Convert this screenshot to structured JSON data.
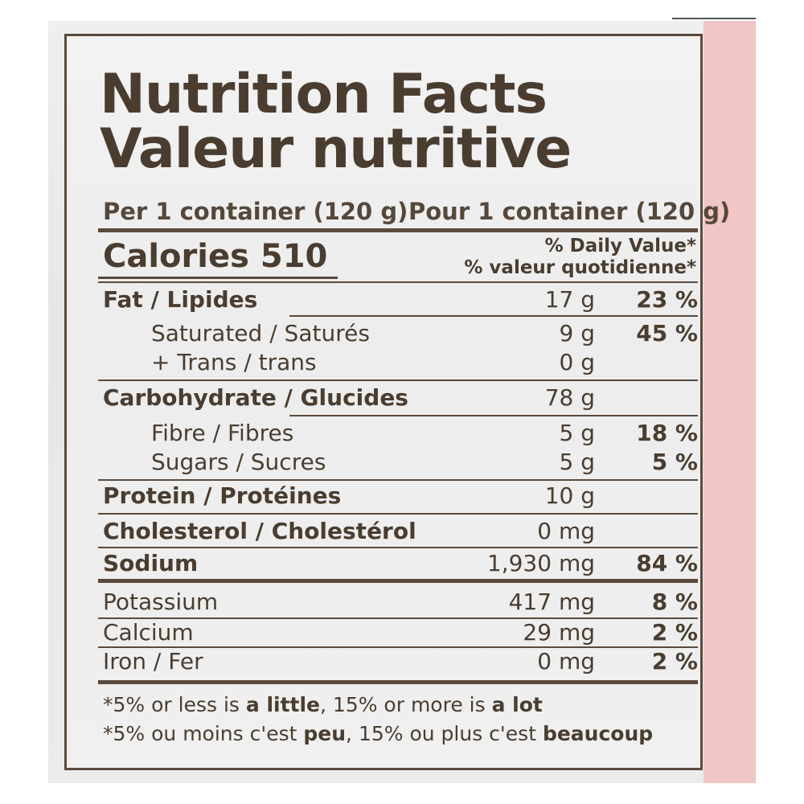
{
  "title_en": "Nutrition Facts",
  "title_fr": "Valeur nutritive",
  "serving_en": "Per 1 container (120 g)",
  "serving_fr": "Pour 1 container (120 g)",
  "calories_label": "Calories",
  "calories_value": "510",
  "dv_header_en": "% Daily Value*",
  "dv_header_fr": "% valeur quotidienne*",
  "rows": [
    {
      "label": "Fat / Lipides",
      "amount": "17 g",
      "dv": "23 %"
    },
    {
      "label": "Saturated / Saturés",
      "amount": "9 g",
      "dv": "45 %"
    },
    {
      "label": "+ Trans / trans",
      "amount": "0 g",
      "dv": ""
    },
    {
      "label": "Carbohydrate / Glucides",
      "amount": "78 g",
      "dv": ""
    },
    {
      "label": "Fibre / Fibres",
      "amount": "5 g",
      "dv": "18 %"
    },
    {
      "label": "Sugars / Sucres",
      "amount": "5 g",
      "dv": "5 %"
    },
    {
      "label": "Protein / Protéines",
      "amount": "10 g",
      "dv": ""
    },
    {
      "label": "Cholesterol / Cholestérol",
      "amount": "0 mg",
      "dv": ""
    },
    {
      "label": "Sodium",
      "amount": "1,930 mg",
      "dv": "84 %"
    },
    {
      "label": "Potassium",
      "amount": "417 mg",
      "dv": "8 %"
    },
    {
      "label": "Calcium",
      "amount": "29 mg",
      "dv": "2 %"
    },
    {
      "label": "Iron / Fer",
      "amount": "0 mg",
      "dv": "2 %"
    }
  ],
  "footnote_en_a": "*5% or less is ",
  "footnote_en_b": "a little",
  "footnote_en_c": ", 15% or more is ",
  "footnote_en_d": "a lot",
  "footnote_fr_a": "*5% ou moins c'est ",
  "footnote_fr_b": "peu",
  "footnote_fr_c": ", 15% ou plus c'est ",
  "footnote_fr_d": "beaucoup"
}
